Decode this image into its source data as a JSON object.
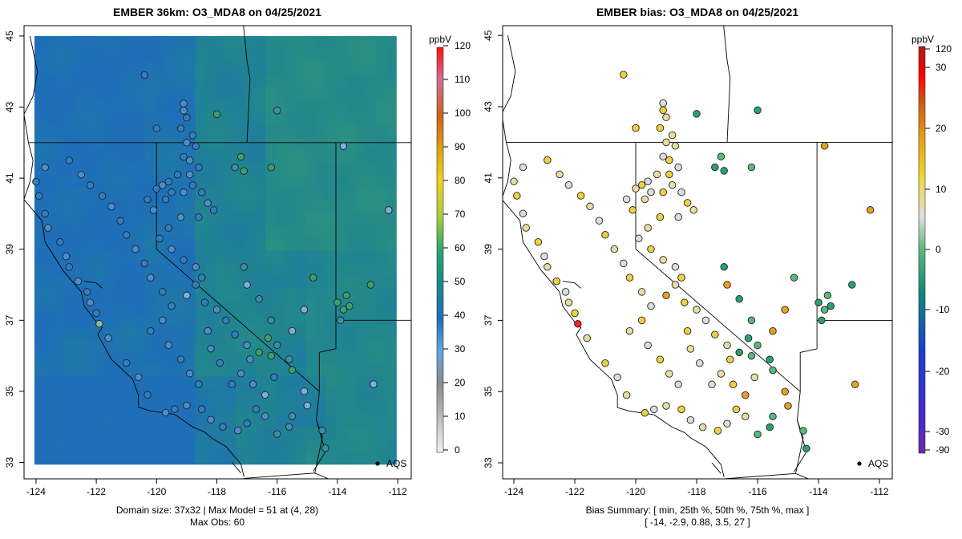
{
  "chart_data": [
    {
      "type": "map-heatmap",
      "title": "EMBER 36km: O3_MDA8 on 04/25/2021",
      "xlim": [
        -124.3,
        -111.6
      ],
      "ylim": [
        32.8,
        45.2
      ],
      "x_ticks": [
        -124,
        -122,
        -120,
        -118,
        -116,
        -114,
        -112
      ],
      "y_ticks": [
        33,
        35,
        37,
        39,
        41,
        43,
        45
      ],
      "grid": false,
      "colorbar": {
        "label": "ppbV",
        "ticks": [
          0,
          10,
          20,
          30,
          40,
          50,
          60,
          70,
          80,
          90,
          100,
          110,
          120
        ],
        "colors": [
          "#f0f0f0",
          "#b0b0b0",
          "#8a8a8a",
          "#6ab0e6",
          "#1f6fb8",
          "#1a8a8a",
          "#2aa86a",
          "#a6cd3e",
          "#f0d020",
          "#e08a10",
          "#d0601a",
          "#d07090",
          "#ff1010"
        ]
      },
      "marker_label": "AQS",
      "footer": [
        "Domain size: 37x32 | Max Model = 51 at (4, 28)",
        "Max Obs: 60"
      ]
    },
    {
      "type": "map-scatter",
      "title": "EMBER bias: O3_MDA8 on 04/25/2021",
      "xlim": [
        -124.3,
        -111.6
      ],
      "ylim": [
        32.8,
        45.2
      ],
      "x_ticks": [
        -124,
        -122,
        -120,
        -118,
        -116,
        -114,
        -112
      ],
      "y_ticks": [
        33,
        35,
        37,
        39,
        41,
        43,
        45
      ],
      "grid": false,
      "colorbar": {
        "label": "ppbV",
        "ticks": [
          "120",
          "30",
          "20",
          "10",
          "0",
          "-10",
          "-20",
          "-30",
          "-90"
        ],
        "colors": [
          "#b01818",
          "#ff0000",
          "#d05a18",
          "#e89a10",
          "#f0d830",
          "#dedede",
          "#5ab87a",
          "#108a7a",
          "#1a3fd0",
          "#6a2aa8"
        ]
      },
      "marker_label": "AQS",
      "footer": [
        "Bias Summary: [ min, 25th %, 50th %, 75th %, max ]",
        "[ -14,   -2.9,   0.88,   3.5,   27 ]"
      ],
      "bias_summary": {
        "min": -14,
        "p25": -2.9,
        "p50": 0.88,
        "p75": 3.5,
        "max": 27
      }
    }
  ]
}
